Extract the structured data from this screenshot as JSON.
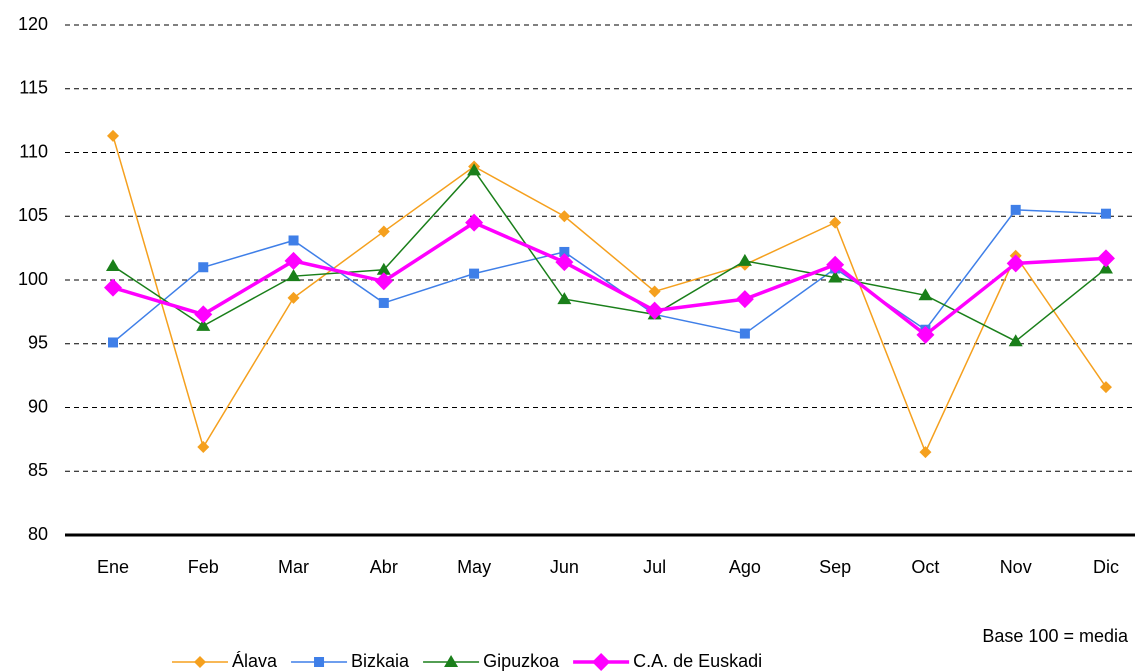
{
  "chart_data": {
    "type": "line",
    "categories": [
      "Ene",
      "Feb",
      "Mar",
      "Abr",
      "May",
      "Jun",
      "Jul",
      "Ago",
      "Sep",
      "Oct",
      "Nov",
      "Dic"
    ],
    "series": [
      {
        "name": "Álava",
        "color": "#f5a01e",
        "marker": "diamond",
        "values": [
          111.3,
          86.9,
          98.6,
          103.8,
          108.9,
          105.0,
          99.1,
          101.2,
          104.5,
          86.5,
          101.9,
          91.6
        ]
      },
      {
        "name": "Bizkaia",
        "color": "#3f7fe8",
        "marker": "square",
        "values": [
          95.1,
          101.0,
          103.1,
          98.2,
          100.5,
          102.2,
          97.3,
          95.8,
          100.9,
          96.1,
          105.5,
          105.2
        ]
      },
      {
        "name": "Gipuzkoa",
        "color": "#1a7f1a",
        "marker": "triangle",
        "values": [
          101.1,
          96.4,
          100.3,
          100.8,
          108.6,
          98.5,
          97.3,
          101.5,
          100.2,
          98.8,
          95.2,
          100.9
        ]
      },
      {
        "name": "C.A. de Euskadi",
        "color": "#ff00ff",
        "marker": "diamond-large",
        "values": [
          99.4,
          97.3,
          101.5,
          99.9,
          104.5,
          101.4,
          97.6,
          98.5,
          101.2,
          95.7,
          101.3,
          101.7
        ]
      }
    ],
    "ylim": [
      80,
      120
    ],
    "yticks": [
      80,
      85,
      90,
      95,
      100,
      105,
      110,
      115,
      120
    ],
    "grid": true,
    "annotation": "Base 100 = media",
    "legend": "bottom"
  }
}
